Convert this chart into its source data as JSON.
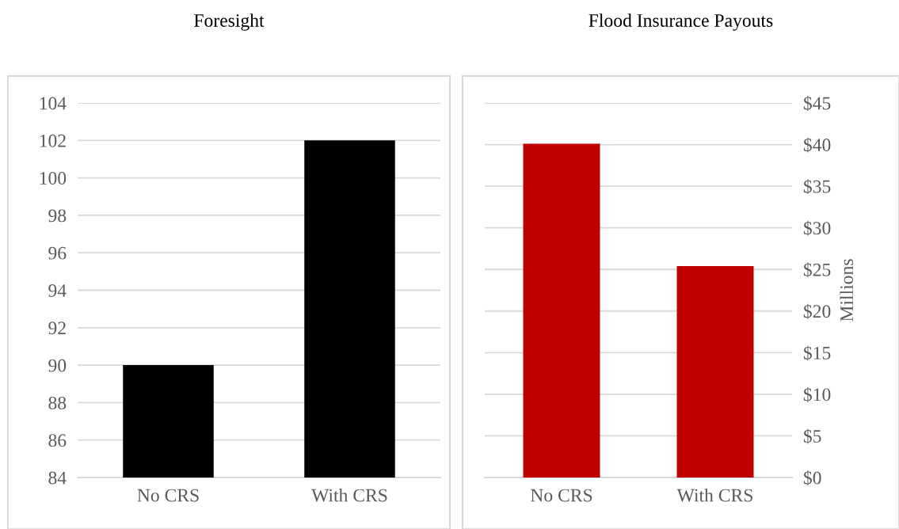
{
  "chart_data": [
    {
      "type": "bar",
      "title": "Foresight",
      "categories": [
        "No CRS",
        "With CRS"
      ],
      "values": [
        90,
        102
      ],
      "color": "#000000",
      "ylim": [
        84,
        104
      ],
      "yticks": [
        84,
        86,
        88,
        90,
        92,
        94,
        96,
        98,
        100,
        102,
        104
      ],
      "grid": "y",
      "legend": false
    },
    {
      "type": "bar",
      "title": "Flood Insurance Payouts",
      "y2label": "Millions",
      "categories": [
        "No CRS",
        "With CRS"
      ],
      "series": [
        {
          "values": [
            40.1,
            25.4
          ],
          "color": "#c00000",
          "axis": "y2"
        }
      ],
      "y2lim": [
        0,
        45
      ],
      "y2ticks": [
        {
          "value": 0,
          "label": "$0"
        },
        {
          "value": 5,
          "label": "$5"
        },
        {
          "value": 10,
          "label": "$10"
        },
        {
          "value": 15,
          "label": "$15"
        },
        {
          "value": 20,
          "label": "$20"
        },
        {
          "value": 25,
          "label": "$25"
        },
        {
          "value": 30,
          "label": "$30"
        },
        {
          "value": 35,
          "label": "$35"
        },
        {
          "value": 40,
          "label": "$40"
        },
        {
          "value": 45,
          "label": "$45"
        }
      ],
      "grid": "y",
      "legend": false
    }
  ]
}
